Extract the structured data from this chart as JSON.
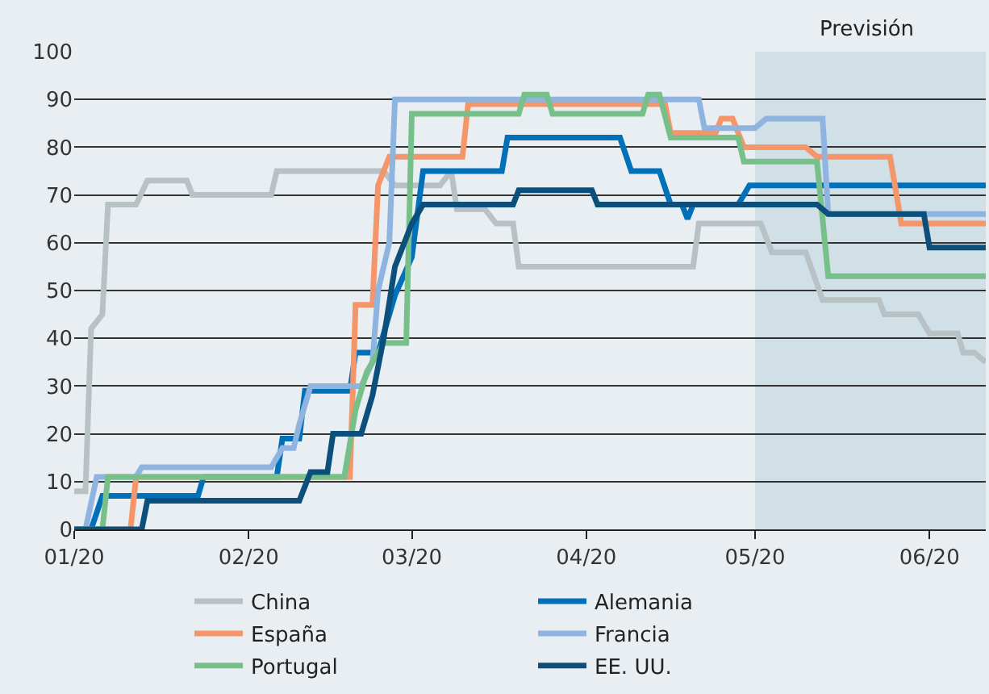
{
  "chart_data": {
    "type": "line",
    "xlim": [
      "2020-01-01",
      "2020-06-11"
    ],
    "xticks": [
      {
        "value": "2020-01-01",
        "label": "01/20"
      },
      {
        "value": "2020-02-01",
        "label": "02/20"
      },
      {
        "value": "2020-03-01",
        "label": "03/20"
      },
      {
        "value": "2020-04-01",
        "label": "04/20"
      },
      {
        "value": "2020-05-01",
        "label": "05/20"
      },
      {
        "value": "2020-06-01",
        "label": "06/20"
      }
    ],
    "ylim": [
      0,
      100
    ],
    "yticks": [
      0,
      10,
      20,
      30,
      40,
      50,
      60,
      70,
      80,
      90,
      100
    ],
    "grid": "y",
    "legend": "bottom",
    "line_style": "solid",
    "marker": "none",
    "bands": [
      {
        "axis": "x",
        "from": "2020-05-01",
        "to": "2020-06-11",
        "label": "Previsión",
        "color": "#d1dfe6"
      }
    ],
    "series": [
      {
        "name": "China",
        "color": "#b8c2c4",
        "x": [
          "2020-01-01",
          "2020-01-03",
          "2020-01-04",
          "2020-01-06",
          "2020-01-07",
          "2020-01-12",
          "2020-01-14",
          "2020-01-21",
          "2020-01-22",
          "2020-02-05",
          "2020-02-06",
          "2020-02-25",
          "2020-02-27",
          "2020-03-06",
          "2020-03-08",
          "2020-03-09",
          "2020-03-14",
          "2020-03-16",
          "2020-03-19",
          "2020-03-20",
          "2020-04-20",
          "2020-04-21",
          "2020-05-02",
          "2020-05-04",
          "2020-05-10",
          "2020-05-13",
          "2020-05-23",
          "2020-05-24",
          "2020-05-30",
          "2020-06-01",
          "2020-06-06",
          "2020-06-07",
          "2020-06-09",
          "2020-06-11"
        ],
        "values": [
          8,
          8,
          42,
          45,
          68,
          68,
          73,
          73,
          70,
          70,
          75,
          75,
          72,
          72,
          75,
          67,
          67,
          64,
          64,
          55,
          55,
          64,
          64,
          58,
          58,
          48,
          48,
          45,
          45,
          41,
          41,
          37,
          37,
          35
        ]
      },
      {
        "name": "Alemania",
        "color": "#0070b8",
        "x": [
          "2020-01-01",
          "2020-01-04",
          "2020-01-06",
          "2020-01-23",
          "2020-01-24",
          "2020-02-06",
          "2020-02-07",
          "2020-02-10",
          "2020-02-11",
          "2020-02-19",
          "2020-02-20",
          "2020-02-24",
          "2020-02-27",
          "2020-03-01",
          "2020-03-03",
          "2020-03-17",
          "2020-03-18",
          "2020-04-07",
          "2020-04-09",
          "2020-04-14",
          "2020-04-16",
          "2020-04-18",
          "2020-04-19",
          "2020-04-20",
          "2020-04-28",
          "2020-04-30",
          "2020-06-11"
        ],
        "values": [
          0,
          0,
          7,
          7,
          11,
          11,
          19,
          19,
          29,
          29,
          37,
          37,
          49,
          57,
          75,
          75,
          82,
          82,
          75,
          75,
          68,
          68,
          65,
          68,
          68,
          72,
          72
        ]
      },
      {
        "name": "España",
        "color": "#f4956a",
        "x": [
          "2020-01-01",
          "2020-01-11",
          "2020-01-12",
          "2020-02-19",
          "2020-02-20",
          "2020-02-23",
          "2020-02-24",
          "2020-02-26",
          "2020-03-10",
          "2020-03-11",
          "2020-04-15",
          "2020-04-16",
          "2020-04-24",
          "2020-04-25",
          "2020-04-27",
          "2020-04-29",
          "2020-05-10",
          "2020-05-12",
          "2020-05-25",
          "2020-05-27",
          "2020-06-11"
        ],
        "values": [
          0,
          0,
          11,
          11,
          47,
          47,
          72,
          78,
          78,
          89,
          89,
          83,
          83,
          86,
          86,
          80,
          80,
          78,
          78,
          64,
          64
        ]
      },
      {
        "name": "Francia",
        "color": "#8fb4e0",
        "x": [
          "2020-01-01",
          "2020-01-03",
          "2020-01-05",
          "2020-01-12",
          "2020-01-13",
          "2020-02-05",
          "2020-02-07",
          "2020-02-09",
          "2020-02-10",
          "2020-02-12",
          "2020-02-21",
          "2020-02-23",
          "2020-02-24",
          "2020-02-26",
          "2020-02-27",
          "2020-04-21",
          "2020-04-22",
          "2020-05-01",
          "2020-05-03",
          "2020-05-13",
          "2020-05-14",
          "2020-06-11"
        ],
        "values": [
          0,
          0,
          11,
          11,
          13,
          13,
          17,
          17,
          22,
          30,
          30,
          35,
          50,
          60,
          90,
          90,
          84,
          84,
          86,
          86,
          66,
          66
        ]
      },
      {
        "name": "Portugal",
        "color": "#78c08a",
        "x": [
          "2020-01-01",
          "2020-01-06",
          "2020-01-07",
          "2020-02-18",
          "2020-02-20",
          "2020-02-22",
          "2020-02-25",
          "2020-02-29",
          "2020-03-01",
          "2020-03-20",
          "2020-03-21",
          "2020-03-25",
          "2020-03-26",
          "2020-04-11",
          "2020-04-12",
          "2020-04-14",
          "2020-04-16",
          "2020-04-28",
          "2020-04-29",
          "2020-05-12",
          "2020-05-14",
          "2020-06-11"
        ],
        "values": [
          0,
          0,
          11,
          11,
          25,
          33,
          39,
          39,
          87,
          87,
          91,
          91,
          87,
          87,
          91,
          91,
          82,
          82,
          77,
          77,
          53,
          53
        ]
      },
      {
        "name": "EE. UU.",
        "color": "#0b4f7a",
        "x": [
          "2020-01-01",
          "2020-01-13",
          "2020-01-14",
          "2020-02-10",
          "2020-02-12",
          "2020-02-15",
          "2020-02-16",
          "2020-02-21",
          "2020-02-23",
          "2020-02-25",
          "2020-02-27",
          "2020-03-01",
          "2020-03-03",
          "2020-03-19",
          "2020-03-20",
          "2020-04-02",
          "2020-04-03",
          "2020-05-12",
          "2020-05-14",
          "2020-05-31",
          "2020-06-01",
          "2020-06-11"
        ],
        "values": [
          0,
          0,
          6,
          6,
          12,
          12,
          20,
          20,
          28,
          40,
          55,
          64,
          68,
          68,
          71,
          71,
          68,
          68,
          66,
          66,
          59,
          59
        ]
      }
    ]
  }
}
